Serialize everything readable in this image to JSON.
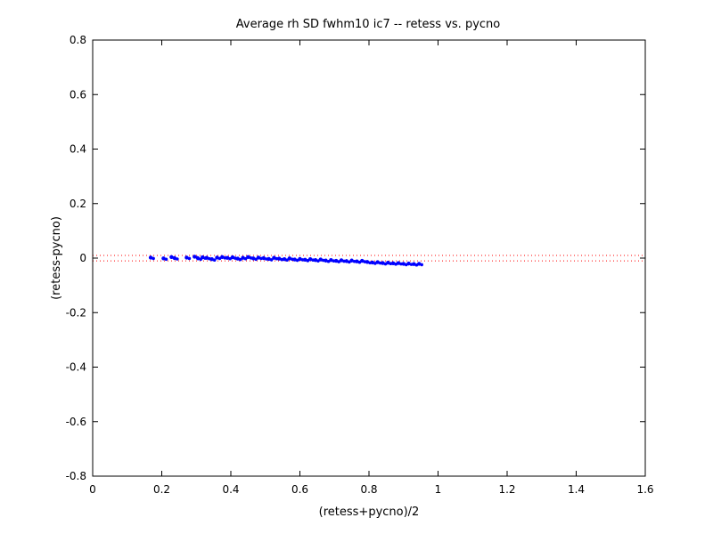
{
  "chart_data": {
    "type": "scatter",
    "title": "Average rh SD fwhm10 ic7 -- retess vs. pycno",
    "xlabel": "(retess+pycno)/2",
    "ylabel": "(retess-pycno)",
    "xlim": [
      0,
      1.6
    ],
    "ylim": [
      -0.8,
      0.8
    ],
    "xticks": [
      "0",
      "0.2",
      "0.4",
      "0.6",
      "0.8",
      "1",
      "1.2",
      "1.4",
      "1.6"
    ],
    "yticks": [
      "0.8",
      "0.6",
      "0.4",
      "0.2",
      "0",
      "-0.2",
      "-0.4",
      "-0.6",
      "-0.8"
    ],
    "grid": false,
    "point_color": "#0000ff",
    "reference_lines": {
      "y_values": [
        0.01,
        -0.01
      ],
      "color": "#ff0000",
      "style": "dotted"
    },
    "series": [
      {
        "points": [
          [
            0.168,
            0.002
          ],
          [
            0.205,
            -0.001
          ],
          [
            0.228,
            0.004
          ],
          [
            0.237,
            0.0
          ],
          [
            0.272,
            0.002
          ],
          [
            0.295,
            0.005
          ],
          [
            0.305,
            -0.001
          ],
          [
            0.318,
            0.003
          ],
          [
            0.33,
            0.001
          ],
          [
            0.345,
            -0.004
          ],
          [
            0.36,
            0.002
          ],
          [
            0.375,
            0.004
          ],
          [
            0.39,
            0.001
          ],
          [
            0.405,
            0.003
          ],
          [
            0.42,
            -0.002
          ],
          [
            0.435,
            0.001
          ],
          [
            0.45,
            0.004
          ],
          [
            0.465,
            -0.001
          ],
          [
            0.48,
            0.002
          ],
          [
            0.495,
            0.0
          ],
          [
            0.51,
            -0.003
          ],
          [
            0.525,
            0.001
          ],
          [
            0.54,
            -0.002
          ],
          [
            0.555,
            -0.004
          ],
          [
            0.57,
            -0.001
          ],
          [
            0.585,
            -0.005
          ],
          [
            0.6,
            -0.003
          ],
          [
            0.615,
            -0.006
          ],
          [
            0.63,
            -0.004
          ],
          [
            0.645,
            -0.007
          ],
          [
            0.66,
            -0.005
          ],
          [
            0.675,
            -0.009
          ],
          [
            0.69,
            -0.007
          ],
          [
            0.705,
            -0.01
          ],
          [
            0.72,
            -0.008
          ],
          [
            0.735,
            -0.011
          ],
          [
            0.75,
            -0.009
          ],
          [
            0.765,
            -0.012
          ],
          [
            0.78,
            -0.01
          ],
          [
            0.795,
            -0.014
          ],
          [
            0.81,
            -0.016
          ],
          [
            0.825,
            -0.015
          ],
          [
            0.84,
            -0.018
          ],
          [
            0.855,
            -0.017
          ],
          [
            0.87,
            -0.019
          ],
          [
            0.885,
            -0.018
          ],
          [
            0.9,
            -0.021
          ],
          [
            0.915,
            -0.02
          ],
          [
            0.93,
            -0.022
          ],
          [
            0.945,
            -0.021
          ]
        ]
      }
    ]
  }
}
